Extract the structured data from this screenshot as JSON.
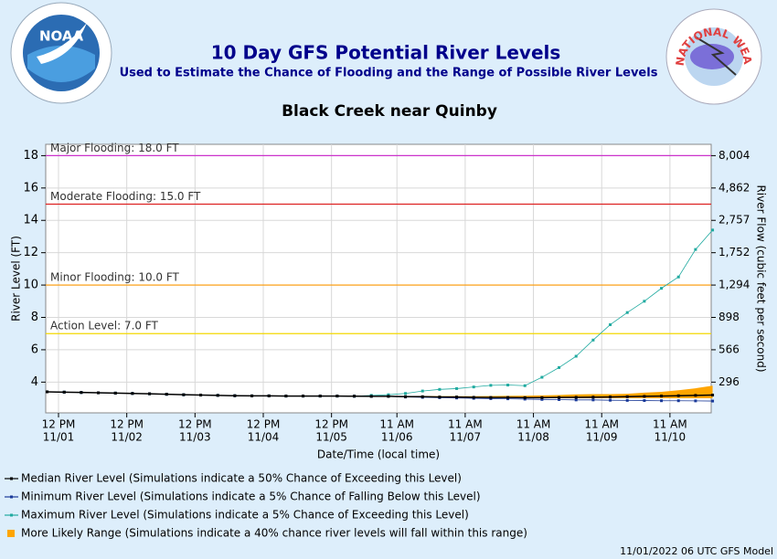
{
  "chart_data": {
    "type": "line",
    "title": "10 Day GFS Potential River Levels",
    "subtitle": "Used to Estimate the Chance of Flooding and the Range of Possible River Levels",
    "station": "Black Creek near Quinby",
    "y_label": "River Level (FT)",
    "y2_label": "River Flow (cubic feet per second)",
    "x_label": "Date/Time (local time)",
    "footer": "11/01/2022 06 UTC GFS Model",
    "logos": {
      "left": "NOAA",
      "right": "NATIONAL WEATHER SERVICE"
    },
    "grid": true,
    "ylim": [
      2.1,
      18.7
    ],
    "yticks": [
      4,
      6,
      8,
      10,
      12,
      14,
      16,
      18
    ],
    "y2ticks": [
      {
        "value": 296,
        "label": "296"
      },
      {
        "value": 566,
        "label": "566"
      },
      {
        "value": 898,
        "label": "898"
      },
      {
        "value": 1294,
        "label": "1,294"
      },
      {
        "value": 1752,
        "label": "1,752"
      },
      {
        "value": 2757,
        "label": "2,757"
      },
      {
        "value": 4862,
        "label": "4,862"
      },
      {
        "value": 8004,
        "label": "8,004"
      }
    ],
    "xlim": [
      "11/01 07:30",
      "11/11 01:30"
    ],
    "xticks": [
      {
        "value": "11/01 12:00",
        "label": "12 PM",
        "date": "11/01"
      },
      {
        "value": "11/02 12:00",
        "label": "12 PM",
        "date": "11/02"
      },
      {
        "value": "11/03 12:00",
        "label": "12 PM",
        "date": "11/03"
      },
      {
        "value": "11/04 12:00",
        "label": "12 PM",
        "date": "11/04"
      },
      {
        "value": "11/05 12:00",
        "label": "12 PM",
        "date": "11/05"
      },
      {
        "value": "11/06 11:00",
        "label": "11 AM",
        "date": "11/06"
      },
      {
        "value": "11/07 11:00",
        "label": "11 AM",
        "date": "11/07"
      },
      {
        "value": "11/08 11:00",
        "label": "11 AM",
        "date": "11/08"
      },
      {
        "value": "11/09 11:00",
        "label": "11 AM",
        "date": "11/09"
      },
      {
        "value": "11/10 11:00",
        "label": "11 AM",
        "date": "11/10"
      }
    ],
    "thresholds": [
      {
        "value": 18,
        "label": "Major Flooding: 18.0 FT",
        "color": "#cc33cc"
      },
      {
        "value": 15,
        "label": "Moderate Flooding: 15.0 FT",
        "color": "#dd2222"
      },
      {
        "value": 10,
        "label": "Minor Flooding: 10.0 FT",
        "color": "#ff9900"
      },
      {
        "value": 7,
        "label": "Action Level: 7.0 FT",
        "color": "#f2d800"
      }
    ],
    "x": [
      "11/01 08:00",
      "11/01 14:00",
      "11/01 20:00",
      "11/02 02:00",
      "11/02 08:00",
      "11/02 14:00",
      "11/02 20:00",
      "11/03 02:00",
      "11/03 08:00",
      "11/03 14:00",
      "11/03 20:00",
      "11/04 02:00",
      "11/04 08:00",
      "11/04 14:00",
      "11/04 20:00",
      "11/05 02:00",
      "11/05 08:00",
      "11/05 14:00",
      "11/05 20:00",
      "11/06 02:00",
      "11/06 08:00",
      "11/06 14:00",
      "11/06 20:00",
      "11/07 02:00",
      "11/07 08:00",
      "11/07 14:00",
      "11/07 20:00",
      "11/08 02:00",
      "11/08 08:00",
      "11/08 14:00",
      "11/08 20:00",
      "11/09 02:00",
      "11/09 08:00",
      "11/09 14:00",
      "11/09 20:00",
      "11/10 02:00",
      "11/10 08:00",
      "11/10 14:00",
      "11/10 20:00",
      "11/11 02:00"
    ],
    "range": {
      "name": "More Likely Range (Simulations indicate a 40% chance river levels will fall within this range)",
      "color": "#ffa500",
      "low": [
        null,
        null,
        null,
        null,
        null,
        null,
        null,
        null,
        null,
        null,
        null,
        null,
        null,
        null,
        null,
        null,
        null,
        null,
        null,
        null,
        null,
        3.08,
        3.07,
        3.06,
        3.05,
        3.04,
        3.03,
        3.02,
        3.02,
        3.01,
        3.0,
        3.0,
        3.0,
        3.0,
        3.0,
        3.0,
        3.0,
        3.0,
        3.0,
        3.0
      ],
      "high": [
        null,
        null,
        null,
        null,
        null,
        null,
        null,
        null,
        null,
        null,
        null,
        null,
        null,
        null,
        null,
        null,
        null,
        null,
        null,
        null,
        null,
        3.14,
        3.14,
        3.13,
        3.13,
        3.13,
        3.14,
        3.15,
        3.16,
        3.18,
        3.2,
        3.24,
        3.26,
        3.26,
        3.28,
        3.35,
        3.4,
        3.5,
        3.62,
        3.78
      ]
    },
    "series": [
      {
        "name": "Median River Level (Simulations indicate a 50% Chance of Exceeding this Level)",
        "color": "#000000",
        "values": [
          3.4,
          3.38,
          3.36,
          3.34,
          3.32,
          3.3,
          3.28,
          3.25,
          3.22,
          3.2,
          3.18,
          3.16,
          3.15,
          3.15,
          3.14,
          3.14,
          3.14,
          3.14,
          3.13,
          3.12,
          3.12,
          3.1,
          3.1,
          3.08,
          3.08,
          3.06,
          3.05,
          3.05,
          3.04,
          3.04,
          3.05,
          3.06,
          3.07,
          3.08,
          3.1,
          3.12,
          3.14,
          3.16,
          3.18,
          3.2
        ]
      },
      {
        "name": "Minimum River Level (Simulations indicate a 5% Chance of Falling Below this Level)",
        "color": "#1a3a9a",
        "values": [
          3.4,
          3.38,
          3.36,
          3.34,
          3.32,
          3.3,
          3.28,
          3.25,
          3.22,
          3.2,
          3.18,
          3.16,
          3.15,
          3.15,
          3.14,
          3.14,
          3.14,
          3.14,
          3.13,
          3.12,
          3.12,
          3.08,
          3.06,
          3.04,
          3.02,
          3.0,
          2.98,
          2.97,
          2.95,
          2.93,
          2.92,
          2.9,
          2.9,
          2.88,
          2.87,
          2.86,
          2.85,
          2.85,
          2.84,
          2.83
        ]
      },
      {
        "name": "Maximum River Level (Simulations indicate a 5% Chance of Exceeding this Level)",
        "color": "#20aaa0",
        "values": [
          3.4,
          3.38,
          3.36,
          3.34,
          3.32,
          3.3,
          3.28,
          3.25,
          3.22,
          3.2,
          3.18,
          3.16,
          3.15,
          3.15,
          3.14,
          3.14,
          3.14,
          3.14,
          3.13,
          3.18,
          3.22,
          3.3,
          3.45,
          3.55,
          3.6,
          3.7,
          3.8,
          3.82,
          3.78,
          4.3,
          4.9,
          5.6,
          6.6,
          7.55,
          8.3,
          9.0,
          9.8,
          10.5,
          12.2,
          13.4
        ]
      }
    ]
  }
}
